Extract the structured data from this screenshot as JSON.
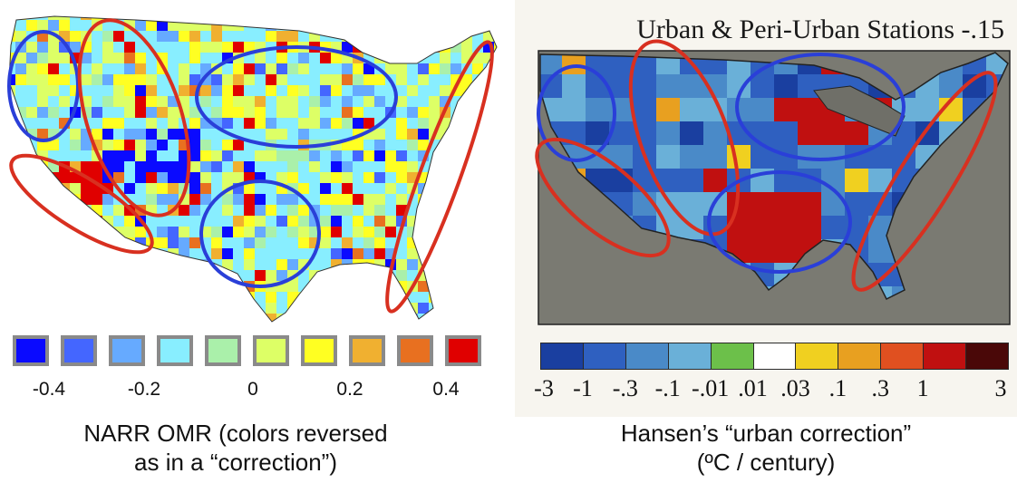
{
  "left_panel": {
    "legend_colors": [
      "#0a0aff",
      "#4466ff",
      "#66aaff",
      "#88eeff",
      "#aaf0aa",
      "#ddff66",
      "#ffff22",
      "#f0b030",
      "#e87020",
      "#e00000"
    ],
    "legend_ticks": [
      "-0.4",
      "-0.2",
      "0",
      "0.2",
      "0.4"
    ],
    "caption_line1": "NARR OMR (colors reversed",
    "caption_line2": "as in a “correction”)"
  },
  "right_panel": {
    "title": "Urban & Peri-Urban Stations   -.15",
    "legend_colors": [
      "#1a3fa0",
      "#2f60c0",
      "#4a8ac8",
      "#6ab0d8",
      "#6cc04a",
      "#ffffff",
      "#f0d020",
      "#e8a020",
      "#e05020",
      "#c01010",
      "#4a0808"
    ],
    "legend_ticks": [
      "-3",
      "-1",
      "-.3",
      "-.1",
      "-.01",
      ".01",
      ".03",
      ".1",
      ".3",
      "1",
      "3"
    ],
    "caption_line1": "Hansen’s “urban correction”",
    "caption_line2": "(ºC / century)"
  },
  "colors": {
    "circle_blue": "#2a3fd8",
    "circle_red": "#d83020",
    "ocean": "#7a7a72",
    "land_base": "#2f60c0"
  }
}
